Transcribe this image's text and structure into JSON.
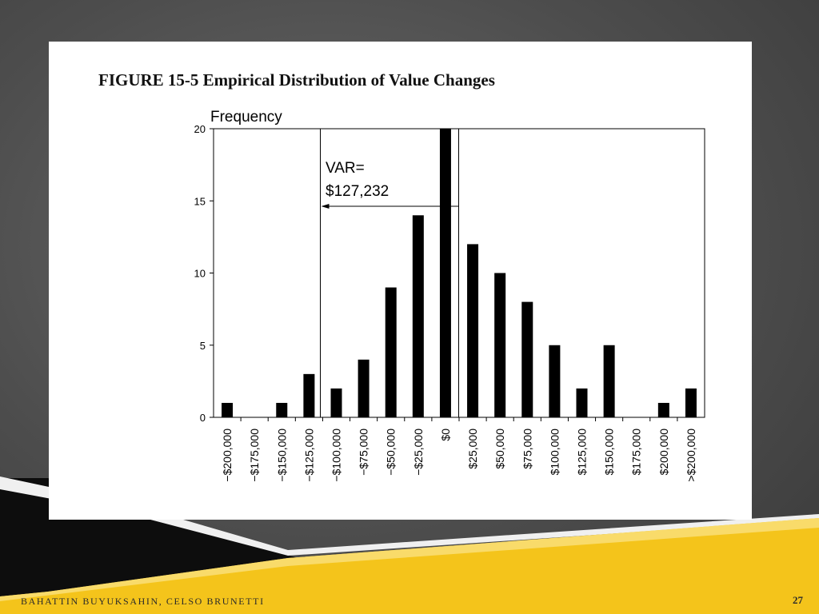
{
  "slide": {
    "footer_author": "BAHATTIN BUYUKSAHIN, CELSO BRUNETTI",
    "page_number": "27",
    "accent_color": "#F4C41B",
    "background_color": "#555555"
  },
  "figure": {
    "title": "FIGURE 15-5 Empirical Distribution of Value Changes"
  },
  "chart_data": {
    "type": "bar",
    "title": "FIGURE 15-5 Empirical Distribution of Value Changes",
    "xlabel": "",
    "ylabel": "Frequency",
    "categories": [
      "−$200,000",
      "−$175,000",
      "−$150,000",
      "−$125,000",
      "−$100,000",
      "−$75,000",
      "−$50,000",
      "−$25,000",
      "$0",
      "$25,000",
      "$50,000",
      "$75,000",
      "$100,000",
      "$125,000",
      "$150,000",
      "$175,000",
      "$200,000",
      ">$200,000"
    ],
    "values": [
      1,
      0,
      1,
      3,
      2,
      4,
      9,
      14,
      20,
      12,
      10,
      8,
      5,
      2,
      5,
      0,
      1,
      2
    ],
    "ylim": [
      0,
      20
    ],
    "yticks": [
      0,
      5,
      10,
      15,
      20
    ],
    "grid": false,
    "bar_color": "#000000",
    "annotation": {
      "line1": "VAR=",
      "line2": "$127,232"
    }
  }
}
